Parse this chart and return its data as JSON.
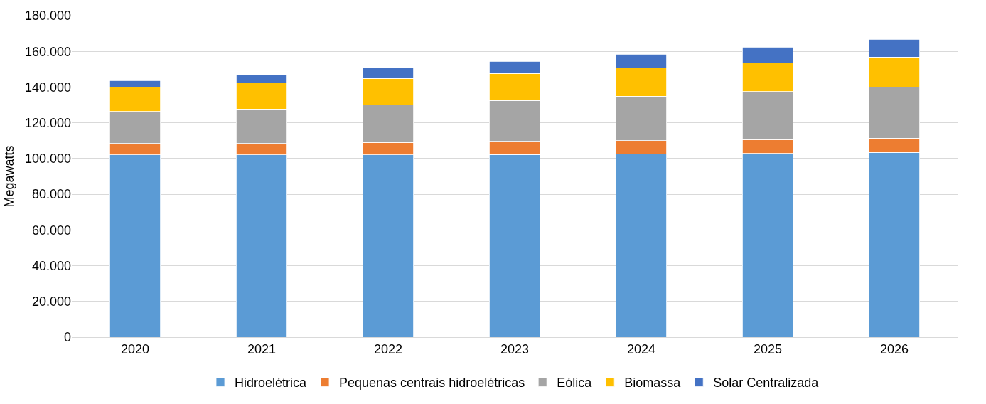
{
  "chart_data": {
    "type": "bar",
    "stacked": true,
    "ylabel": "Megawatts",
    "categories": [
      "2020",
      "2021",
      "2022",
      "2023",
      "2024",
      "2025",
      "2026"
    ],
    "series": [
      {
        "name": "Hidroelétrica",
        "color": "#5b9bd5",
        "values": [
          102000,
          102000,
          102100,
          102200,
          102500,
          102900,
          103500
        ]
      },
      {
        "name": "Pequenas centrais hidroelétricas",
        "color": "#ed7d31",
        "values": [
          6500,
          6500,
          6900,
          7400,
          7500,
          7800,
          8000
        ]
      },
      {
        "name": "Eólica",
        "color": "#a5a5a5",
        "values": [
          17800,
          19300,
          21200,
          23000,
          24900,
          26700,
          28500
        ]
      },
      {
        "name": "Biomassa",
        "color": "#ffc000",
        "values": [
          13600,
          14400,
          14700,
          15100,
          15700,
          16300,
          16900
        ]
      },
      {
        "name": "Solar Centralizada",
        "color": "#4472c4",
        "values": [
          3800,
          4700,
          5700,
          6700,
          7700,
          8700,
          9900
        ]
      }
    ],
    "ylim": [
      0,
      180000
    ],
    "yticks": [
      0,
      {
        "value": 20000,
        "label": "20.000"
      },
      {
        "value": 40000,
        "label": "40.000"
      },
      {
        "value": 60000,
        "label": "60.000"
      },
      {
        "value": 80000,
        "label": "80.000"
      },
      {
        "value": 100000,
        "label": "100.000"
      },
      {
        "value": 120000,
        "label": "120.000"
      },
      {
        "value": 140000,
        "label": "140.000"
      },
      {
        "value": 160000,
        "label": "160.000"
      },
      {
        "value": 180000,
        "label": "180.000"
      }
    ],
    "grid": "y",
    "legend": "bottom"
  }
}
